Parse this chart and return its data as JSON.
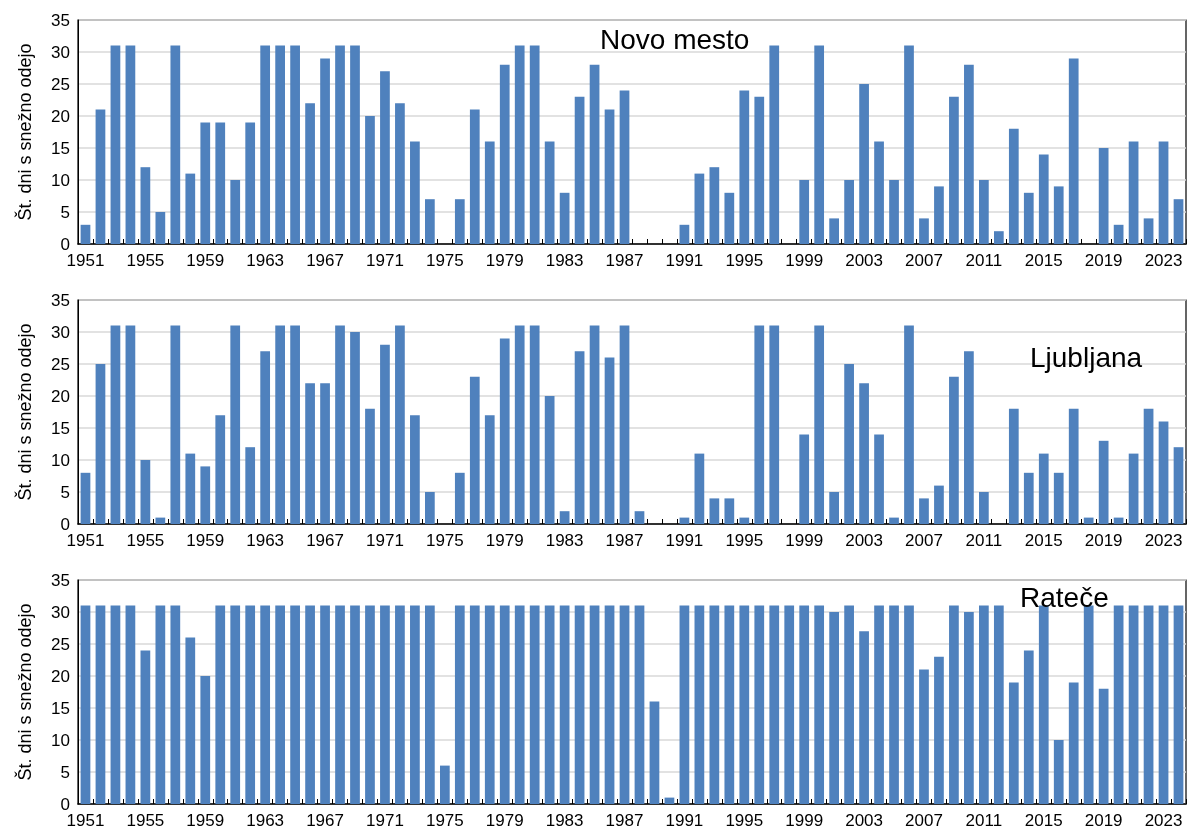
{
  "chart_data": [
    {
      "type": "bar",
      "title": "Novo mesto",
      "ylabel": "Št. dni s snežno odejo",
      "categories": [
        "1951",
        null,
        null,
        null,
        "1955",
        null,
        null,
        null,
        "1959",
        null,
        null,
        null,
        "1963",
        null,
        null,
        null,
        "1967",
        null,
        null,
        null,
        "1971",
        null,
        null,
        null,
        "1975",
        null,
        null,
        null,
        "1979",
        null,
        null,
        null,
        "1983",
        null,
        null,
        null,
        "1987",
        null,
        null,
        null,
        "1991",
        null,
        null,
        null,
        "1995",
        null,
        null,
        null,
        "1999",
        null,
        null,
        null,
        "2003",
        null,
        null,
        null,
        "2007",
        null,
        null,
        null,
        "2011",
        null,
        null,
        null,
        "2015",
        null,
        null,
        null,
        "2019",
        null,
        null,
        null,
        "2023",
        null
      ],
      "values": [
        3,
        21,
        31,
        31,
        12,
        5,
        31,
        11,
        19,
        19,
        10,
        19,
        31,
        31,
        31,
        22,
        29,
        31,
        31,
        20,
        27,
        22,
        16,
        7,
        0,
        7,
        21,
        16,
        28,
        31,
        31,
        16,
        8,
        23,
        28,
        21,
        24,
        0,
        0,
        0,
        3,
        11,
        12,
        8,
        24,
        23,
        31,
        0,
        10,
        31,
        4,
        10,
        25,
        16,
        10,
        31,
        4,
        9,
        23,
        28,
        10,
        2,
        18,
        8,
        14,
        9,
        29,
        0,
        15,
        3,
        16,
        4,
        16,
        7
      ],
      "color": "#4f81bd",
      "ylim": [
        0,
        35
      ],
      "yticks": [
        0,
        5,
        10,
        15,
        20,
        25,
        30,
        35
      ],
      "grid": "y"
    },
    {
      "type": "bar",
      "title": "Ljubljana",
      "ylabel": "Št. dni s snežno odejo",
      "categories": [
        "1951",
        null,
        null,
        null,
        "1955",
        null,
        null,
        null,
        "1959",
        null,
        null,
        null,
        "1963",
        null,
        null,
        null,
        "1967",
        null,
        null,
        null,
        "1971",
        null,
        null,
        null,
        "1975",
        null,
        null,
        null,
        "1979",
        null,
        null,
        null,
        "1983",
        null,
        null,
        null,
        "1987",
        null,
        null,
        null,
        "1991",
        null,
        null,
        null,
        "1995",
        null,
        null,
        null,
        "1999",
        null,
        null,
        null,
        "2003",
        null,
        null,
        null,
        "2007",
        null,
        null,
        null,
        "2011",
        null,
        null,
        null,
        "2015",
        null,
        null,
        null,
        "2019",
        null,
        null,
        null,
        "2023",
        null
      ],
      "values": [
        8,
        25,
        31,
        31,
        10,
        1,
        31,
        11,
        9,
        17,
        31,
        12,
        27,
        31,
        31,
        22,
        22,
        31,
        30,
        18,
        28,
        31,
        17,
        5,
        0,
        8,
        23,
        17,
        29,
        31,
        31,
        20,
        2,
        27,
        31,
        26,
        31,
        2,
        0,
        0,
        1,
        11,
        4,
        4,
        1,
        31,
        31,
        0,
        14,
        31,
        5,
        25,
        22,
        14,
        1,
        31,
        4,
        6,
        23,
        27,
        5,
        0,
        18,
        8,
        11,
        8,
        18,
        1,
        13,
        1,
        11,
        18,
        16,
        12
      ],
      "color": "#4f81bd",
      "ylim": [
        0,
        35
      ],
      "yticks": [
        0,
        5,
        10,
        15,
        20,
        25,
        30,
        35
      ],
      "grid": "y"
    },
    {
      "type": "bar",
      "title": "Rateče",
      "ylabel": "Št. dni s snežno odejo",
      "categories": [
        "1951",
        null,
        null,
        null,
        "1955",
        null,
        null,
        null,
        "1959",
        null,
        null,
        null,
        "1963",
        null,
        null,
        null,
        "1967",
        null,
        null,
        null,
        "1971",
        null,
        null,
        null,
        "1975",
        null,
        null,
        null,
        "1979",
        null,
        null,
        null,
        "1983",
        null,
        null,
        null,
        "1987",
        null,
        null,
        null,
        "1991",
        null,
        null,
        null,
        "1995",
        null,
        null,
        null,
        "1999",
        null,
        null,
        null,
        "2003",
        null,
        null,
        null,
        "2007",
        null,
        null,
        null,
        "2011",
        null,
        null,
        null,
        "2015",
        null,
        null,
        null,
        "2019",
        null,
        null,
        null,
        "2023",
        null
      ],
      "values": [
        31,
        31,
        31,
        31,
        24,
        31,
        31,
        26,
        20,
        31,
        31,
        31,
        31,
        31,
        31,
        31,
        31,
        31,
        31,
        31,
        31,
        31,
        31,
        31,
        6,
        31,
        31,
        31,
        31,
        31,
        31,
        31,
        31,
        31,
        31,
        31,
        31,
        31,
        16,
        1,
        31,
        31,
        31,
        31,
        31,
        31,
        31,
        31,
        31,
        31,
        30,
        31,
        27,
        31,
        31,
        31,
        21,
        23,
        31,
        30,
        31,
        31,
        19,
        24,
        31,
        10,
        19,
        31,
        18,
        31,
        31,
        31,
        31,
        31
      ],
      "color": "#4f81bd",
      "ylim": [
        0,
        35
      ],
      "yticks": [
        0,
        5,
        10,
        15,
        20,
        25,
        30,
        35
      ],
      "grid": "y"
    }
  ]
}
